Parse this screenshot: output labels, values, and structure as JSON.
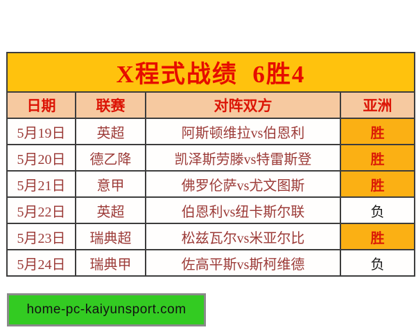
{
  "title": "X程式战绩  6胜4",
  "table": {
    "headers": [
      "日期",
      "联赛",
      "对阵双方",
      "亚洲"
    ],
    "rows": [
      {
        "date": "5月19日",
        "league": "英超",
        "match": "阿斯顿维拉vs伯恩利",
        "result": "胜",
        "win": true
      },
      {
        "date": "5月20日",
        "league": "德乙降",
        "match": "凯泽斯劳滕vs特雷斯登",
        "result": "胜",
        "win": true
      },
      {
        "date": "5月21日",
        "league": "意甲",
        "match": "佛罗伦萨vs尤文图斯",
        "result": "胜",
        "win": true
      },
      {
        "date": "5月22日",
        "league": "英超",
        "match": "伯恩利vs纽卡斯尔联",
        "result": "负",
        "win": false
      },
      {
        "date": "5月23日",
        "league": "瑞典超",
        "match": "松兹瓦尔vs米亚尔比",
        "result": "胜",
        "win": true
      },
      {
        "date": "5月24日",
        "league": "瑞典甲",
        "match": "佐高平斯vs斯柯维德",
        "result": "负",
        "win": false
      }
    ]
  },
  "footer": {
    "url": "home-pc-kaiyunsport.com"
  },
  "colors": {
    "title_bg": "#ffc20d",
    "title_text": "#e60c00",
    "header_bg": "#f6c9a0",
    "header_text": "#dc1405",
    "row_text": "#9c3b38",
    "win_bg": "#fbb014",
    "win_text": "#db1b06",
    "loss_text": "#1a1a1a",
    "grid_line": "#3c3c3c",
    "watermark_bg": "#33cb22",
    "watermark_border": "#8a8a8a"
  },
  "chart_data": {
    "type": "table",
    "title": "X程式战绩 6胜4",
    "columns": [
      "日期",
      "联赛",
      "对阵双方",
      "亚洲"
    ],
    "rows": [
      [
        "5月19日",
        "英超",
        "阿斯顿维拉vs伯恩利",
        "胜"
      ],
      [
        "5月20日",
        "德乙降",
        "凯泽斯劳滕vs特雷斯登",
        "胜"
      ],
      [
        "5月21日",
        "意甲",
        "佛罗伦萨vs尤文图斯",
        "胜"
      ],
      [
        "5月22日",
        "英超",
        "伯恩利vs纽卡斯尔联",
        "负"
      ],
      [
        "5月23日",
        "瑞典超",
        "松兹瓦尔vs米亚尔比",
        "胜"
      ],
      [
        "5月24日",
        "瑞典甲",
        "佐高平斯vs斯柯维德",
        "负"
      ]
    ],
    "legend": {
      "胜": "win (orange cell)",
      "负": "loss (white cell)"
    }
  }
}
